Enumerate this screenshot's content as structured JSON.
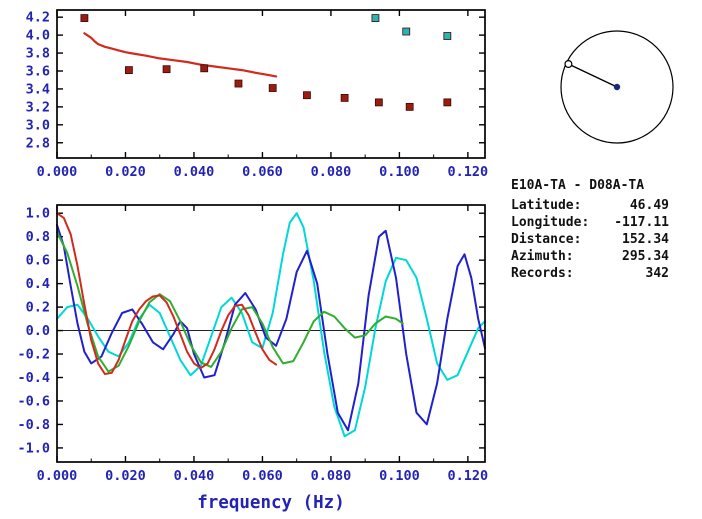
{
  "colors": {
    "frame": "#000000",
    "axis_text": "#2323b4",
    "zero_line": "#000000",
    "dispersion_curve_red": "#d42a1e",
    "measured_points_maroon": "#9b1c10",
    "alternate_points_teal": "#2ab4b4",
    "corr_red": "#d42a1e",
    "corr_green": "#2fae2f",
    "corr_blue": "#2121cc",
    "corr_cyan": "#00d8d8",
    "compass_line": "#000000",
    "compass_center_dot": "#1b2a78"
  },
  "station_info": {
    "title": "E10A-TA - D08A-TA",
    "rows": [
      {
        "label": "Latitude:",
        "value": "46.49"
      },
      {
        "label": "Longitude:",
        "value": "-117.11"
      },
      {
        "label": "Distance:",
        "value": "152.34"
      },
      {
        "label": "Azimuth:",
        "value": "295.34"
      },
      {
        "label": "Records:",
        "value": "342"
      }
    ]
  },
  "compass": {
    "azimuth_deg": 295.34
  },
  "chart_data": [
    {
      "type": "line",
      "title": "",
      "xlabel": "",
      "ylabel": "",
      "xlim": [
        0,
        0.125
      ],
      "ylim": [
        2.63,
        4.28
      ],
      "xticks": [
        0.0,
        0.02,
        0.04,
        0.06,
        0.08,
        0.1,
        0.12
      ],
      "xtick_labels": [
        "0.000",
        "0.020",
        "0.040",
        "0.060",
        "0.080",
        "0.100",
        "0.120"
      ],
      "yticks": [
        2.8,
        3.0,
        3.2,
        3.4,
        3.6,
        3.8,
        4.0,
        4.2
      ],
      "ytick_labels": [
        "2.8",
        "3.0",
        "3.2",
        "3.4",
        "3.6",
        "3.8",
        "4.0",
        "4.2"
      ],
      "grid": false,
      "zero_line": false,
      "series": [
        {
          "name": "dispersion-curve",
          "type": "line",
          "color_key": "dispersion_curve_red",
          "width": 2.2,
          "x": [
            0.008,
            0.01,
            0.011,
            0.012,
            0.014,
            0.016,
            0.018,
            0.02,
            0.023,
            0.026,
            0.03,
            0.034,
            0.038,
            0.042,
            0.046,
            0.05,
            0.054,
            0.058,
            0.061,
            0.064
          ],
          "y": [
            4.02,
            3.97,
            3.93,
            3.9,
            3.87,
            3.85,
            3.83,
            3.81,
            3.79,
            3.77,
            3.74,
            3.72,
            3.7,
            3.67,
            3.65,
            3.63,
            3.61,
            3.58,
            3.56,
            3.54
          ]
        },
        {
          "name": "measured-phase-velocity-points",
          "type": "scatter",
          "marker": "square",
          "size": 7,
          "color_key": "measured_points_maroon",
          "x": [
            0.008,
            0.021,
            0.032,
            0.043,
            0.053,
            0.063,
            0.073,
            0.084,
            0.094,
            0.103,
            0.114
          ],
          "y": [
            4.19,
            3.61,
            3.62,
            3.63,
            3.46,
            3.41,
            3.33,
            3.3,
            3.25,
            3.2,
            3.25
          ]
        },
        {
          "name": "alternate-branch-points",
          "type": "scatter",
          "marker": "square",
          "size": 7,
          "color_key": "alternate_points_teal",
          "x": [
            0.093,
            0.102,
            0.114
          ],
          "y": [
            4.19,
            4.04,
            3.99
          ]
        }
      ]
    },
    {
      "type": "line",
      "title": "",
      "xlabel": "frequency (Hz)",
      "ylabel": "",
      "xlim": [
        0,
        0.125
      ],
      "ylim": [
        -1.12,
        1.07
      ],
      "xticks": [
        0.0,
        0.02,
        0.04,
        0.06,
        0.08,
        0.1,
        0.12
      ],
      "xtick_labels": [
        "0.000",
        "0.020",
        "0.040",
        "0.060",
        "0.080",
        "0.100",
        "0.120"
      ],
      "yticks": [
        -1.0,
        -0.8,
        -0.6,
        -0.4,
        -0.2,
        0.0,
        0.2,
        0.4,
        0.6,
        0.8,
        1.0
      ],
      "ytick_labels": [
        "-1.0",
        "-0.8",
        "-0.6",
        "-0.4",
        "-0.2",
        "0.0",
        "0.2",
        "0.4",
        "0.6",
        "0.8",
        "1.0"
      ],
      "grid": false,
      "zero_line": true,
      "series": [
        {
          "name": "cross-spectrum-cyan",
          "type": "line",
          "color_key": "corr_cyan",
          "width": 2,
          "x": [
            0.0,
            0.003,
            0.006,
            0.009,
            0.012,
            0.015,
            0.018,
            0.021,
            0.024,
            0.027,
            0.03,
            0.033,
            0.036,
            0.039,
            0.042,
            0.045,
            0.048,
            0.051,
            0.054,
            0.057,
            0.06,
            0.063,
            0.066,
            0.068,
            0.07,
            0.072,
            0.075,
            0.078,
            0.081,
            0.084,
            0.087,
            0.09,
            0.093,
            0.096,
            0.099,
            0.102,
            0.105,
            0.108,
            0.111,
            0.114,
            0.117,
            0.12,
            0.123,
            0.125
          ],
          "y": [
            0.1,
            0.2,
            0.22,
            0.1,
            -0.05,
            -0.18,
            -0.22,
            -0.1,
            0.1,
            0.22,
            0.15,
            -0.05,
            -0.25,
            -0.38,
            -0.3,
            -0.05,
            0.2,
            0.28,
            0.15,
            -0.1,
            -0.15,
            0.15,
            0.65,
            0.92,
            1.0,
            0.88,
            0.42,
            -0.18,
            -0.65,
            -0.9,
            -0.85,
            -0.48,
            0.02,
            0.42,
            0.62,
            0.6,
            0.45,
            0.1,
            -0.28,
            -0.42,
            -0.38,
            -0.18,
            0.02,
            0.08
          ]
        },
        {
          "name": "cross-spectrum-blue",
          "type": "line",
          "color_key": "corr_blue",
          "width": 2,
          "x": [
            0.0,
            0.002,
            0.004,
            0.006,
            0.008,
            0.01,
            0.013,
            0.016,
            0.019,
            0.022,
            0.025,
            0.028,
            0.031,
            0.034,
            0.036,
            0.038,
            0.04,
            0.043,
            0.046,
            0.049,
            0.052,
            0.055,
            0.058,
            0.061,
            0.064,
            0.067,
            0.07,
            0.073,
            0.076,
            0.079,
            0.082,
            0.085,
            0.088,
            0.091,
            0.094,
            0.096,
            0.099,
            0.102,
            0.105,
            0.108,
            0.111,
            0.114,
            0.117,
            0.119,
            0.121,
            0.123,
            0.125
          ],
          "y": [
            0.9,
            0.72,
            0.38,
            0.06,
            -0.18,
            -0.28,
            -0.22,
            -0.02,
            0.15,
            0.18,
            0.05,
            -0.1,
            -0.16,
            -0.03,
            0.08,
            0.02,
            -0.2,
            -0.4,
            -0.38,
            -0.1,
            0.22,
            0.32,
            0.18,
            -0.06,
            -0.13,
            0.1,
            0.5,
            0.68,
            0.4,
            -0.2,
            -0.7,
            -0.85,
            -0.45,
            0.3,
            0.8,
            0.85,
            0.45,
            -0.2,
            -0.7,
            -0.8,
            -0.45,
            0.1,
            0.55,
            0.65,
            0.45,
            0.1,
            -0.15
          ]
        },
        {
          "name": "bessel-fit-green",
          "type": "line",
          "color_key": "corr_green",
          "width": 2,
          "x": [
            0.0,
            0.003,
            0.006,
            0.009,
            0.012,
            0.015,
            0.018,
            0.021,
            0.024,
            0.027,
            0.03,
            0.033,
            0.036,
            0.039,
            0.042,
            0.045,
            0.048,
            0.051,
            0.054,
            0.057,
            0.06,
            0.063,
            0.066,
            0.069,
            0.072,
            0.075,
            0.078,
            0.081,
            0.084,
            0.087,
            0.09,
            0.093,
            0.096,
            0.099,
            0.101
          ],
          "y": [
            0.84,
            0.66,
            0.38,
            0.05,
            -0.22,
            -0.35,
            -0.3,
            -0.13,
            0.08,
            0.24,
            0.31,
            0.25,
            0.08,
            -0.12,
            -0.27,
            -0.31,
            -0.18,
            0.02,
            0.18,
            0.2,
            0.06,
            -0.14,
            -0.28,
            -0.26,
            -0.1,
            0.08,
            0.16,
            0.12,
            0.02,
            -0.06,
            -0.04,
            0.06,
            0.12,
            0.1,
            0.06
          ],
          "note": ""
        },
        {
          "name": "bessel-fit-red",
          "type": "line",
          "color_key": "corr_red",
          "width": 2,
          "x": [
            0.0,
            0.002,
            0.004,
            0.006,
            0.008,
            0.01,
            0.012,
            0.014,
            0.016,
            0.018,
            0.02,
            0.022,
            0.024,
            0.026,
            0.028,
            0.03,
            0.032,
            0.034,
            0.036,
            0.038,
            0.04,
            0.042,
            0.044,
            0.046,
            0.048,
            0.05,
            0.052,
            0.054,
            0.056,
            0.058,
            0.06,
            0.062,
            0.064
          ],
          "y": [
            1.0,
            0.96,
            0.82,
            0.55,
            0.22,
            -0.08,
            -0.28,
            -0.37,
            -0.36,
            -0.25,
            -0.08,
            0.08,
            0.18,
            0.25,
            0.29,
            0.3,
            0.24,
            0.12,
            -0.03,
            -0.18,
            -0.28,
            -0.32,
            -0.28,
            -0.16,
            0.0,
            0.13,
            0.21,
            0.22,
            0.13,
            -0.02,
            -0.16,
            -0.25,
            -0.29
          ]
        }
      ]
    }
  ]
}
